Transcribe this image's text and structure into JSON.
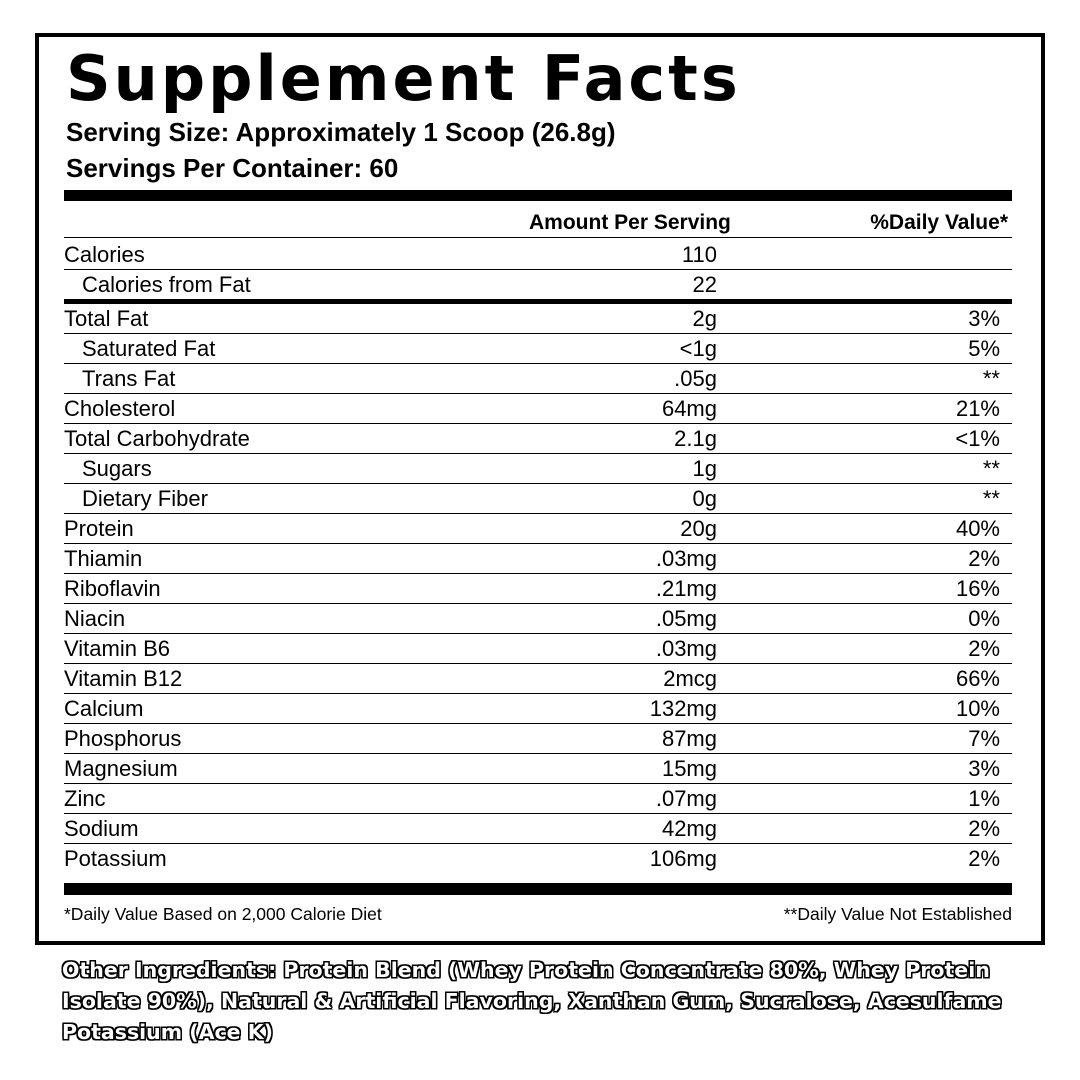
{
  "title": "Supplement Facts",
  "serving_size": "Serving Size: Approximately 1 Scoop (26.8g)",
  "servings_per_container": "Servings Per Container: 60",
  "columns": {
    "amount": "Amount Per Serving",
    "daily_value": "%Daily Value*"
  },
  "rows": [
    {
      "name": "Calories",
      "amount": "110",
      "dv": ""
    },
    {
      "name": "Calories from Fat",
      "amount": "22",
      "dv": ""
    },
    {
      "name": "Total Fat",
      "amount": "2g",
      "dv": "3%"
    },
    {
      "name": "Saturated Fat",
      "amount": "<1g",
      "dv": "5%"
    },
    {
      "name": "Trans Fat",
      "amount": ".05g",
      "dv": "**"
    },
    {
      "name": "Cholesterol",
      "amount": "64mg",
      "dv": "21%"
    },
    {
      "name": "Total Carbohydrate",
      "amount": "2.1g",
      "dv": "<1%"
    },
    {
      "name": "Sugars",
      "amount": "1g",
      "dv": "**"
    },
    {
      "name": "Dietary Fiber",
      "amount": "0g",
      "dv": "**"
    },
    {
      "name": "Protein",
      "amount": "20g",
      "dv": "40%"
    },
    {
      "name": "Thiamin",
      "amount": ".03mg",
      "dv": "2%"
    },
    {
      "name": "Riboflavin",
      "amount": ".21mg",
      "dv": "16%"
    },
    {
      "name": "Niacin",
      "amount": ".05mg",
      "dv": "0%"
    },
    {
      "name": "Vitamin B6",
      "amount": ".03mg",
      "dv": "2%"
    },
    {
      "name": "Vitamin B12",
      "amount": "2mcg",
      "dv": "66%"
    },
    {
      "name": "Calcium",
      "amount": "132mg",
      "dv": "10%"
    },
    {
      "name": "Phosphorus",
      "amount": "87mg",
      "dv": "7%"
    },
    {
      "name": "Magnesium",
      "amount": "15mg",
      "dv": "3%"
    },
    {
      "name": "Zinc",
      "amount": ".07mg",
      "dv": "1%"
    },
    {
      "name": "Sodium",
      "amount": "42mg",
      "dv": "2%"
    },
    {
      "name": "Potassium",
      "amount": "106mg",
      "dv": "2%"
    }
  ],
  "footnotes": {
    "left": "*Daily Value Based on 2,000 Calorie Diet",
    "right": "**Daily Value Not Established"
  },
  "ingredients": "Other Ingredients: Protein Blend (Whey Protein Concentrate 80%, Whey Protein Isolate 90%), Natural & Artificial Flavoring, Xanthan Gum, Sucralose, Acesulfame Potassium (Ace K)"
}
